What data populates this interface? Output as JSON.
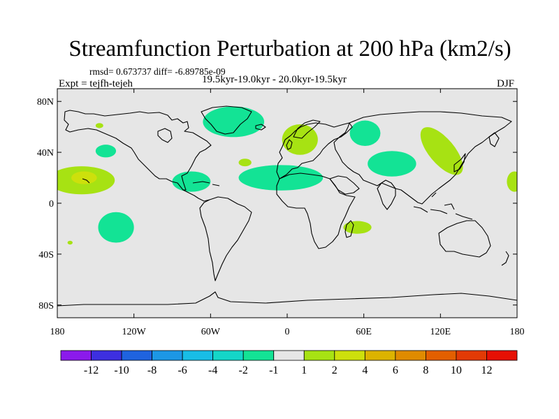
{
  "title": "Streamfunction Perturbation at 200 hPa (km2/s)",
  "stats": "rmsd= 0.673737 diff= -6.89785e-09",
  "period": "19.5kyr-19.0kyr - 20.0kyr-19.5kyr",
  "experiment": "Expt = tejfh-tejeh",
  "season": "DJF",
  "axes": {
    "lon_ticks": [
      "180",
      "120W",
      "60W",
      "0",
      "60E",
      "120E",
      "180"
    ],
    "lat_ticks": [
      "80N",
      "40N",
      "0",
      "40S",
      "80S"
    ]
  },
  "colorbar": {
    "colors": [
      "#8b1aeb",
      "#3d2fe0",
      "#1f63df",
      "#1c97e5",
      "#18bde6",
      "#14d6c8",
      "#13e395",
      "#e6e6e6",
      "#a7e213",
      "#cde00c",
      "#dcb300",
      "#e08b00",
      "#e35f00",
      "#e23a05",
      "#e61004"
    ],
    "labels": [
      "-12",
      "-10",
      "-8",
      "-6",
      "-4",
      "-2",
      "-1",
      "1",
      "2",
      "4",
      "6",
      "8",
      "10",
      "12"
    ]
  },
  "regions": [
    {
      "name": "north-atlantic-greenland",
      "lon": -42,
      "lat": 64,
      "rx": 24,
      "ry": 12,
      "color": "#13e395"
    },
    {
      "name": "tropical-atlantic",
      "lon": -5,
      "lat": 20,
      "rx": 33,
      "ry": 10,
      "color": "#13e395"
    },
    {
      "name": "caribbean",
      "lon": -75,
      "lat": 17,
      "rx": 15,
      "ry": 8,
      "color": "#13e395"
    },
    {
      "name": "north-pacific-east",
      "lon": -142,
      "lat": 41,
      "rx": 8,
      "ry": 5,
      "color": "#13e395"
    },
    {
      "name": "south-pacific",
      "lon": -134,
      "lat": -19,
      "rx": 14,
      "ry": 12,
      "color": "#13e395"
    },
    {
      "name": "siberia",
      "lon": 61,
      "lat": 55,
      "rx": 12,
      "ry": 10,
      "color": "#13e395"
    },
    {
      "name": "central-asia",
      "lon": 82,
      "lat": 31,
      "rx": 19,
      "ry": 10,
      "color": "#13e395"
    },
    {
      "name": "hawaii-subtropics",
      "lon": -161,
      "lat": 18,
      "rx": 26,
      "ry": 11,
      "color": "#a7e213"
    },
    {
      "name": "hawaii-core",
      "lon": -159,
      "lat": 20,
      "rx": 10,
      "ry": 5,
      "color": "#cde00c"
    },
    {
      "name": "europe",
      "lon": 10,
      "lat": 50,
      "rx": 14,
      "ry": 12,
      "color": "#a7e213"
    },
    {
      "name": "east-asia",
      "lon": 121,
      "lat": 41,
      "rx": 10,
      "ry": 23,
      "color": "#a7e213",
      "rotate": -40
    },
    {
      "name": "mid-atlantic",
      "lon": -33,
      "lat": 32,
      "rx": 5,
      "ry": 3,
      "color": "#a7e213"
    },
    {
      "name": "north-pacific-west",
      "lon": -147,
      "lat": 61,
      "rx": 3,
      "ry": 2,
      "color": "#a7e213"
    },
    {
      "name": "south-indian-ocean",
      "lon": 55,
      "lat": -19,
      "rx": 11,
      "ry": 5,
      "color": "#a7e213"
    },
    {
      "name": "south-pacific-small",
      "lon": -170,
      "lat": -31,
      "rx": 2,
      "ry": 1.5,
      "color": "#a7e213"
    },
    {
      "name": "date-line-east",
      "lon": 178,
      "lat": 17,
      "rx": 6,
      "ry": 8,
      "color": "#a7e213"
    }
  ]
}
